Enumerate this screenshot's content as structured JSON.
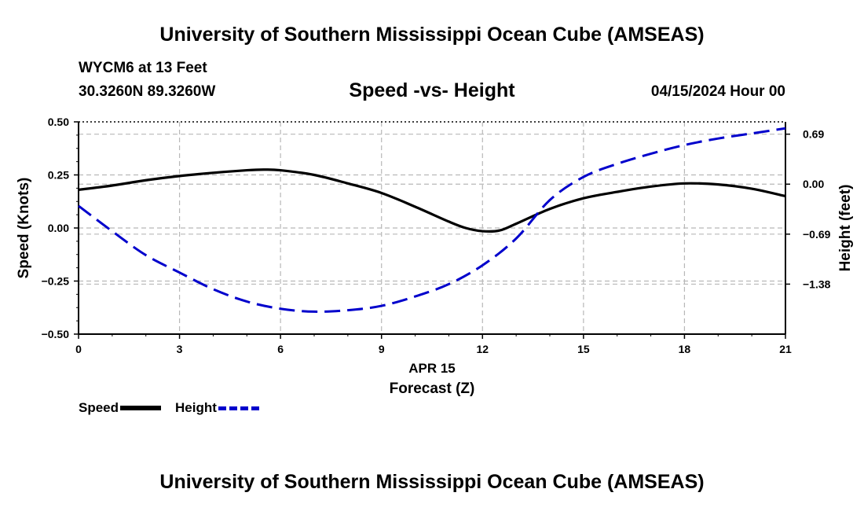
{
  "page": {
    "title_top": "University of Southern Mississippi Ocean Cube (AMSEAS)",
    "title_bottom": "University of Southern Mississippi Ocean Cube (AMSEAS)",
    "station": "WYCM6 at 13 Feet",
    "coords": "30.3260N  89.3260W",
    "subtitle": "Speed -vs- Height",
    "date": "04/15/2024 Hour 00"
  },
  "chart_data": {
    "type": "line",
    "title": "Speed -vs- Height",
    "xlabel_line1": "APR 15",
    "xlabel": "Forecast (Z)",
    "ylabel_left": "Speed (Knots)",
    "ylabel_right": "Height (feet)",
    "xlim": [
      0,
      21
    ],
    "x_ticks": [
      0,
      3,
      6,
      9,
      12,
      15,
      18,
      21
    ],
    "x_tick_labels": [
      "0",
      "3",
      "6",
      "9",
      "12",
      "15",
      "18",
      "21"
    ],
    "ylim_left": [
      -0.5,
      0.5
    ],
    "y_ticks_left": [
      -0.5,
      -0.25,
      0.0,
      0.25,
      0.5
    ],
    "y_tick_labels_left": [
      "−0.50",
      "−0.25",
      "0.00",
      "0.25",
      "0.50"
    ],
    "ylim_right": [
      -2.07,
      0.86
    ],
    "y_ticks_right": [
      0.69,
      0.0,
      -0.69,
      -1.38
    ],
    "y_tick_labels_right": [
      "0.69",
      "0.00",
      "−0.69",
      "−1.38"
    ],
    "grid": true,
    "series": [
      {
        "name": "Speed",
        "axis": "left",
        "color": "#000000",
        "style": "solid",
        "x": [
          0,
          1,
          2,
          3,
          4,
          5,
          5.5,
          6,
          7,
          8,
          9,
          10,
          11,
          11.5,
          12,
          12.5,
          13,
          14,
          15,
          16,
          17,
          18,
          19,
          20,
          21
        ],
        "values": [
          0.18,
          0.2,
          0.225,
          0.245,
          0.26,
          0.272,
          0.275,
          0.272,
          0.25,
          0.21,
          0.165,
          0.1,
          0.03,
          0.0,
          -0.015,
          -0.012,
          0.02,
          0.09,
          0.14,
          0.17,
          0.195,
          0.21,
          0.205,
          0.185,
          0.15
        ]
      },
      {
        "name": "Height",
        "axis": "right",
        "color": "#0000cc",
        "style": "dashed",
        "x": [
          0,
          1,
          2,
          3,
          4,
          5,
          6,
          7,
          8,
          9,
          10,
          11,
          12,
          13,
          14,
          15,
          16,
          17,
          18,
          19,
          20,
          21
        ],
        "values": [
          -0.3,
          -0.65,
          -0.98,
          -1.22,
          -1.45,
          -1.62,
          -1.72,
          -1.76,
          -1.74,
          -1.68,
          -1.55,
          -1.38,
          -1.12,
          -0.75,
          -0.22,
          0.1,
          0.28,
          0.42,
          0.54,
          0.63,
          0.7,
          0.77
        ]
      }
    ],
    "legend": [
      {
        "label": "Speed",
        "color": "#000000",
        "style": "solid"
      },
      {
        "label": "Height",
        "color": "#0000cc",
        "style": "dashed"
      }
    ],
    "legend_position": "bottom-left"
  }
}
